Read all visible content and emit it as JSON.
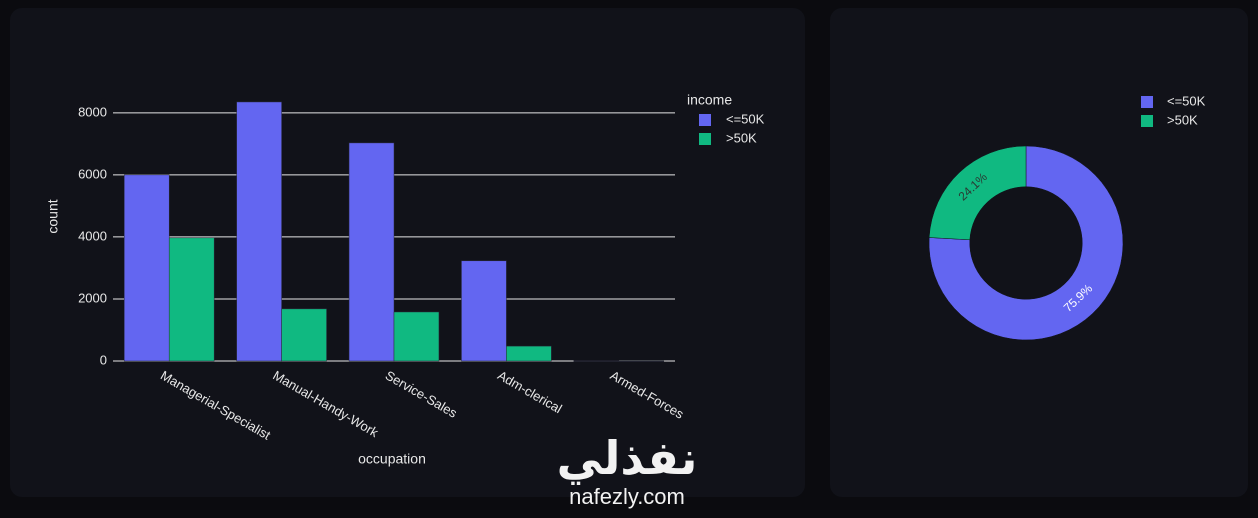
{
  "chart_data": [
    {
      "type": "bar",
      "x_label": "occupation",
      "y_label": "count",
      "legend_title": "income",
      "categories": [
        "Managerial-Specialist",
        "Manual-Handy-Work",
        "Service-Sales",
        "Adm-clerical",
        "Armed-Forces"
      ],
      "series": [
        {
          "name": "<=50K",
          "color": "#6366f1",
          "values": [
            6000,
            8350,
            7030,
            3230,
            9
          ]
        },
        {
          "name": ">50K",
          "color": "#10b981",
          "values": [
            3970,
            1680,
            1580,
            480,
            1
          ]
        }
      ],
      "ylim": [
        0,
        8800
      ],
      "yticks": [
        0,
        2000,
        4000,
        6000,
        8000
      ],
      "grid": true
    },
    {
      "type": "pie",
      "hole": 0.58,
      "categories": [
        "<=50K",
        ">50K"
      ],
      "colors": [
        "#6366f1",
        "#10b981"
      ],
      "values": [
        75.9,
        24.1
      ],
      "value_labels": [
        "75.9%",
        "24.1%"
      ]
    }
  ],
  "watermark": {
    "arabic": "نفذلي",
    "url": "nafezly.com"
  }
}
